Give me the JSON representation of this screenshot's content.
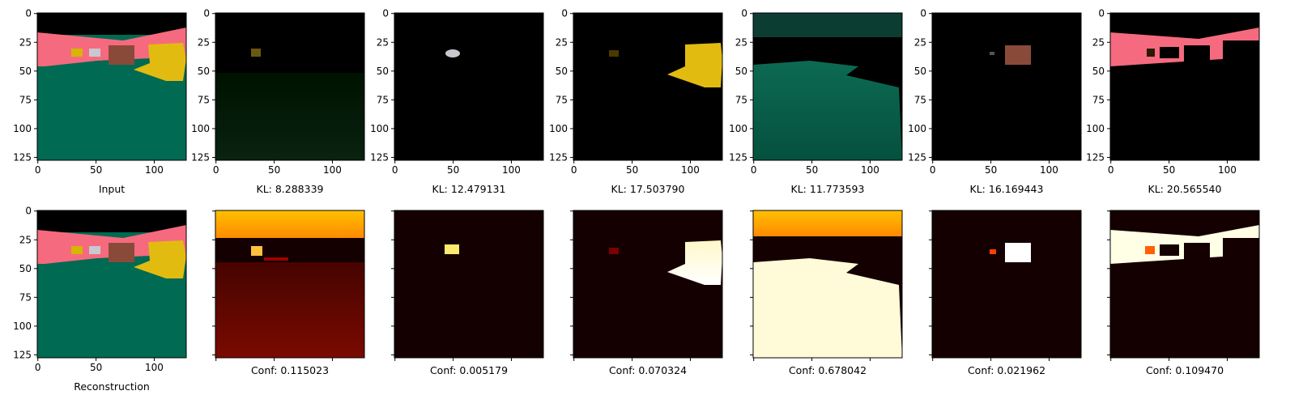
{
  "row_top": {
    "titles": [
      "Input",
      "KL: 8.288339",
      "KL: 12.479131",
      "KL: 17.503790",
      "KL: 11.773593",
      "KL: 16.169443",
      "KL: 20.565540"
    ]
  },
  "row_bottom": {
    "titles": [
      "Reconstruction",
      "Conf: 0.115023",
      "Conf: 0.005179",
      "Conf: 0.070324",
      "Conf: 0.678042",
      "Conf: 0.021962",
      "Conf: 0.109470"
    ]
  },
  "axes": {
    "x_ticks": [
      "0",
      "50",
      "100"
    ],
    "y_ticks": [
      "0",
      "25",
      "50",
      "75",
      "100",
      "125"
    ]
  },
  "colors": {
    "wall": "#f56a7e",
    "floor": "#006a52",
    "hat": "#e2bb10",
    "box": "#8a4a3a",
    "conf_hot": "#ffffd0",
    "conf_warm": "#ff9a00",
    "conf_dark": "#180000"
  }
}
